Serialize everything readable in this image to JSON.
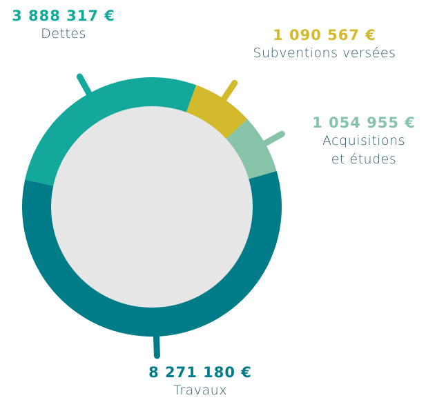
{
  "chart_data": {
    "type": "donut",
    "categories": [
      "Dettes",
      "Subventions versées",
      "Acquisitions et études",
      "Travaux"
    ],
    "values": [
      3888317,
      1090567,
      1054955,
      8271180
    ],
    "value_labels": [
      "3 888 317 €",
      "1 090 567 €",
      "1 054 955 €",
      "8 271 180 €"
    ],
    "colors": [
      "#13a89b",
      "#d3b92c",
      "#87c3a8",
      "#007b88"
    ]
  }
}
